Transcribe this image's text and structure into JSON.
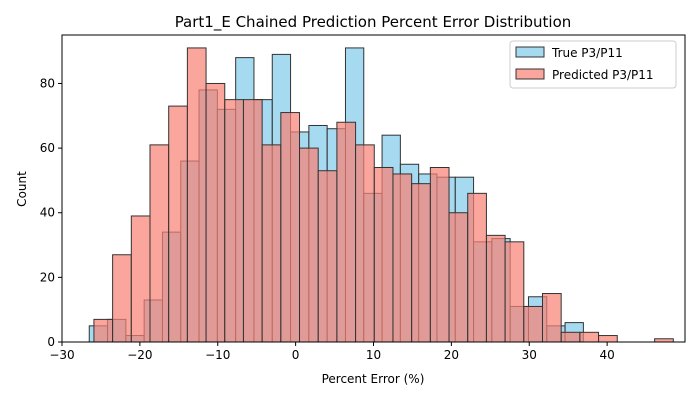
{
  "chart_data": {
    "type": "histogram",
    "title": "Part1_E Chained Prediction Percent Error Distribution",
    "xlabel": "Percent Error (%)",
    "ylabel": "Count",
    "xlim": [
      -30,
      50
    ],
    "ylim": [
      0,
      95
    ],
    "xticks": [
      -30,
      -20,
      -10,
      0,
      10,
      20,
      30,
      40
    ],
    "yticks": [
      0,
      20,
      40,
      60,
      80
    ],
    "legend_position": "top-right",
    "grid": false,
    "series": [
      {
        "name": "True P3/P11",
        "color": "#87ceeb",
        "edge": "#333333",
        "alpha": 0.75,
        "bin_start": -26.5,
        "bin_width": 2.35,
        "counts": [
          5,
          7,
          2,
          13,
          34,
          56,
          78,
          72,
          88,
          75,
          89,
          65,
          67,
          66,
          91,
          46,
          64,
          55,
          52,
          51,
          51,
          31,
          32,
          11,
          14,
          5,
          6
        ]
      },
      {
        "name": "Predicted P3/P11",
        "color": "#fa8072",
        "edge": "#333333",
        "alpha": 0.7,
        "bin_start": -25.9,
        "bin_width": 2.4,
        "counts": [
          7,
          27,
          39,
          61,
          73,
          91,
          80,
          75,
          75,
          61,
          71,
          60,
          53,
          68,
          61,
          54,
          52,
          49,
          54,
          40,
          46,
          33,
          31,
          11,
          15,
          3,
          3,
          2,
          0,
          0,
          1
        ]
      }
    ]
  }
}
